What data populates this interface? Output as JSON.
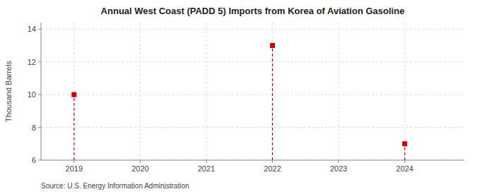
{
  "chart_data": {
    "type": "stem",
    "title": "Annual West Coast (PADD 5) Imports from Korea of Aviation Gasoline",
    "y_label": "Thousand Barrels",
    "source": "Source: U.S. Energy Information Administration",
    "x": [
      2019,
      2022,
      2024
    ],
    "values": [
      10.0,
      13.0,
      7.0
    ],
    "color": "#cc0000",
    "marker": "square",
    "line_style": "dashed",
    "xlim": [
      2018.5,
      2024.9
    ],
    "ylim": [
      6,
      14.4
    ],
    "xticks": [
      2019,
      2020,
      2021,
      2022,
      2023,
      2024
    ],
    "yticks": [
      6,
      8,
      10,
      12,
      14
    ],
    "grid": true
  }
}
